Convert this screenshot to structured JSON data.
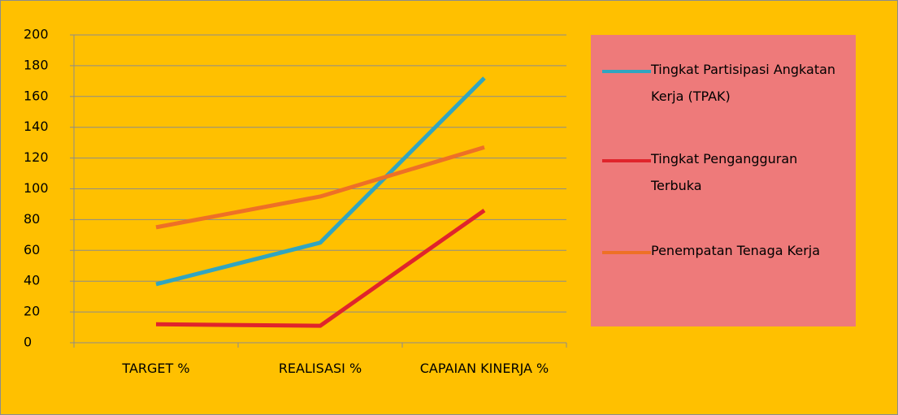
{
  "chart_data": {
    "type": "line",
    "categories": [
      "TARGET  %",
      "REALISASI %",
      "CAPAIAN KINERJA %"
    ],
    "series": [
      {
        "name": "Tingkat Partisipasi Angkatan Kerja (TPAK)",
        "color": "#31A5C0",
        "values": [
          38,
          65,
          172
        ]
      },
      {
        "name": "Tingkat Pengangguran Terbuka",
        "color": "#E0242C",
        "values": [
          12,
          11,
          86
        ]
      },
      {
        "name": "Penempatan Tenaga Kerja",
        "color": "#EE7026",
        "values": [
          75,
          95,
          127
        ]
      }
    ],
    "ylim": [
      0,
      200
    ],
    "yticks": [
      0,
      20,
      40,
      60,
      80,
      100,
      120,
      140,
      160,
      180,
      200
    ],
    "grid": true,
    "legend": "right"
  }
}
